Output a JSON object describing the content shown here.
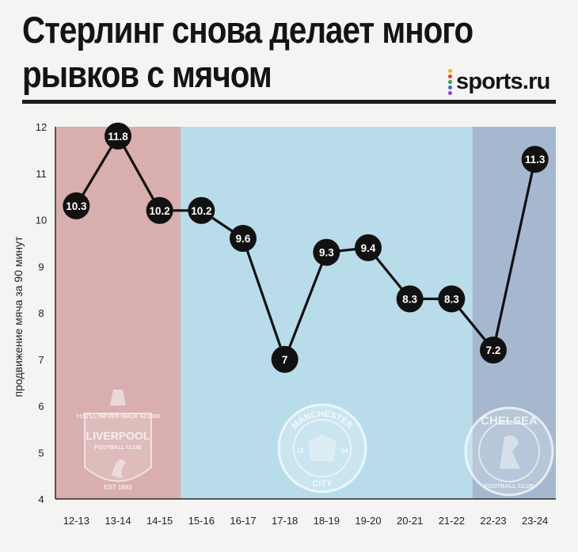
{
  "header": {
    "title_line1": "Стерлинг снова делает много",
    "title_line2": "рывков с мячом",
    "brand": "sports.ru",
    "brand_dot_colors": [
      "#f3b312",
      "#e8433a",
      "#2fa84f",
      "#3c6bd8",
      "#a23bbf"
    ]
  },
  "clubs": [
    {
      "name": "liverpool",
      "seasons": [
        "12-13",
        "13-14",
        "14-15"
      ],
      "color": "#d8aeae",
      "logo_texts": [
        "YOU'LL NEVER WALK ALONE",
        "LIVERPOOL",
        "FOOTBALL CLUB",
        "EST 1892"
      ]
    },
    {
      "name": "manchester-city",
      "seasons": [
        "15-16",
        "16-17",
        "17-18",
        "18-19",
        "19-20",
        "20-21",
        "21-22"
      ],
      "color": "#b8dcea",
      "logo_texts": [
        "MANCHESTER",
        "CITY",
        "18",
        "94"
      ]
    },
    {
      "name": "chelsea",
      "seasons": [
        "22-23",
        "23-24"
      ],
      "color": "#a6b8cf",
      "logo_texts": [
        "CHELSEA",
        "FOOTBALL CLUB"
      ]
    }
  ],
  "chart_data": {
    "type": "line",
    "title": "Стерлинг снова делает много рывков с мячом",
    "xlabel": "",
    "ylabel": "продвижение мяча за 90 минут",
    "categories": [
      "12-13",
      "13-14",
      "14-15",
      "15-16",
      "16-17",
      "17-18",
      "18-19",
      "19-20",
      "20-21",
      "21-22",
      "22-23",
      "23-24"
    ],
    "values": [
      10.3,
      11.8,
      10.2,
      10.2,
      9.6,
      7,
      9.3,
      9.4,
      8.3,
      8.3,
      7.2,
      11.3
    ],
    "labels": [
      "10.3",
      "11.8",
      "10.2",
      "10.2",
      "9.6",
      "7",
      "9.3",
      "9.4",
      "8.3",
      "8.3",
      "7.2",
      "11.3"
    ],
    "ylim": [
      4,
      12
    ],
    "yticks": [
      4,
      5,
      6,
      7,
      8,
      9,
      10,
      11,
      12
    ],
    "grid": false,
    "line_color": "#111111",
    "marker_color": "#111111",
    "marker_text_color": "#ffffff"
  }
}
